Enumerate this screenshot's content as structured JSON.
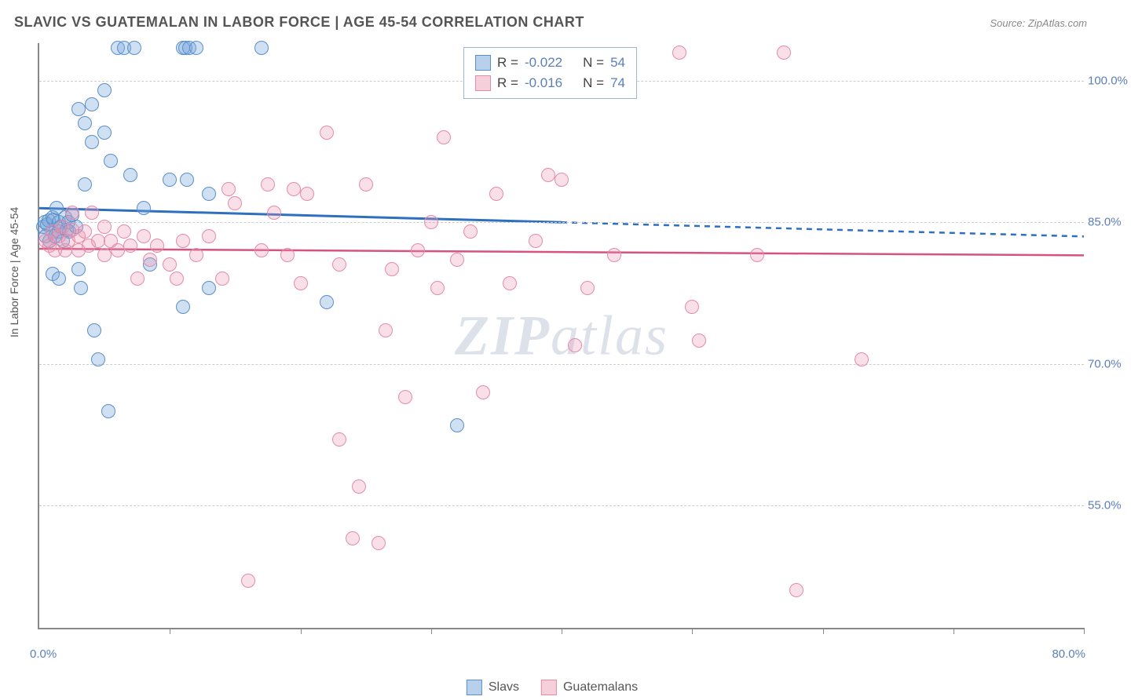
{
  "title": "SLAVIC VS GUATEMALAN IN LABOR FORCE | AGE 45-54 CORRELATION CHART",
  "source": "Source: ZipAtlas.com",
  "ylabel": "In Labor Force | Age 45-54",
  "watermark_bold": "ZIP",
  "watermark_rest": "atlas",
  "chart": {
    "type": "scatter",
    "xlim": [
      0,
      80
    ],
    "ylim": [
      42,
      104
    ],
    "yticks": [
      55.0,
      70.0,
      85.0,
      100.0
    ],
    "ytick_labels": [
      "55.0%",
      "70.0%",
      "85.0%",
      "100.0%"
    ],
    "xticks": [
      10,
      20,
      30,
      40,
      50,
      60,
      70,
      80
    ],
    "x_min_label": "0.0%",
    "x_max_label": "80.0%",
    "background_color": "#ffffff",
    "grid_color": "#cccccc",
    "axis_color": "#888888",
    "label_color": "#5b7fb8",
    "marker_radius": 9,
    "marker_stroke_width": 1.5,
    "series": [
      {
        "name": "Slavs",
        "fill": "rgba(120,165,220,0.35)",
        "stroke": "#5b8fc9",
        "swatch_fill": "#b8d0ea",
        "swatch_stroke": "#5b8fc9",
        "R": "-0.022",
        "N": "54",
        "trend": {
          "x1": 0,
          "y1": 86.5,
          "x2": 40,
          "y2": 85.0,
          "color": "#2e6fc0",
          "width": 3,
          "dash_x1": 40,
          "dash_y1": 85.0,
          "dash_x2": 80,
          "dash_y2": 83.5
        },
        "points": [
          [
            0.3,
            84.5
          ],
          [
            0.4,
            85.0
          ],
          [
            0.5,
            83.5
          ],
          [
            0.6,
            84.8
          ],
          [
            0.7,
            85.2
          ],
          [
            0.8,
            83.0
          ],
          [
            1.0,
            84.0
          ],
          [
            1.0,
            85.5
          ],
          [
            1.1,
            85.3
          ],
          [
            1.2,
            83.5
          ],
          [
            1.3,
            86.5
          ],
          [
            1.5,
            84.0
          ],
          [
            1.5,
            85.0
          ],
          [
            1.6,
            84.5
          ],
          [
            1.8,
            83.0
          ],
          [
            2.0,
            85.5
          ],
          [
            2.1,
            84.2
          ],
          [
            2.2,
            85.0
          ],
          [
            2.3,
            84.0
          ],
          [
            2.5,
            85.8
          ],
          [
            2.8,
            84.5
          ],
          [
            3.0,
            97.0
          ],
          [
            3.0,
            80.0
          ],
          [
            3.2,
            78.0
          ],
          [
            3.5,
            95.5
          ],
          [
            3.5,
            89.0
          ],
          [
            4.0,
            93.5
          ],
          [
            4.0,
            97.5
          ],
          [
            4.2,
            73.5
          ],
          [
            4.5,
            70.5
          ],
          [
            5.0,
            99.0
          ],
          [
            5.0,
            94.5
          ],
          [
            5.3,
            65.0
          ],
          [
            5.5,
            91.5
          ],
          [
            6.0,
            103.5
          ],
          [
            6.5,
            103.5
          ],
          [
            7.0,
            90.0
          ],
          [
            7.3,
            103.5
          ],
          [
            8.0,
            86.5
          ],
          [
            8.5,
            80.5
          ],
          [
            10.0,
            89.5
          ],
          [
            11.0,
            103.5
          ],
          [
            11.0,
            76.0
          ],
          [
            11.2,
            103.5
          ],
          [
            11.3,
            89.5
          ],
          [
            11.5,
            103.5
          ],
          [
            12.0,
            103.5
          ],
          [
            13.0,
            78.0
          ],
          [
            13.0,
            88.0
          ],
          [
            17.0,
            103.5
          ],
          [
            22.0,
            76.5
          ],
          [
            32.0,
            63.5
          ],
          [
            1.0,
            79.5
          ],
          [
            1.5,
            79.0
          ]
        ]
      },
      {
        "name": "Guatemalans",
        "fill": "rgba(235,150,175,0.30)",
        "stroke": "#e48ba8",
        "swatch_fill": "#f5d0db",
        "swatch_stroke": "#e48ba8",
        "R": "-0.016",
        "N": "74",
        "trend": {
          "x1": 0,
          "y1": 82.2,
          "x2": 80,
          "y2": 81.5,
          "color": "#d6537f",
          "width": 2.5
        },
        "points": [
          [
            0.5,
            83.0
          ],
          [
            0.8,
            82.5
          ],
          [
            1.0,
            84.0
          ],
          [
            1.2,
            82.0
          ],
          [
            1.5,
            83.5
          ],
          [
            1.8,
            84.5
          ],
          [
            2.0,
            82.0
          ],
          [
            2.2,
            83.0
          ],
          [
            2.5,
            84.2
          ],
          [
            2.5,
            86.0
          ],
          [
            3.0,
            83.5
          ],
          [
            3.0,
            82.0
          ],
          [
            3.5,
            84.0
          ],
          [
            3.8,
            82.5
          ],
          [
            4.0,
            86.0
          ],
          [
            4.5,
            83.0
          ],
          [
            5.0,
            84.5
          ],
          [
            5.0,
            81.5
          ],
          [
            5.5,
            83.0
          ],
          [
            6.0,
            82.0
          ],
          [
            6.5,
            84.0
          ],
          [
            7.0,
            82.5
          ],
          [
            7.5,
            79.0
          ],
          [
            8.0,
            83.5
          ],
          [
            8.5,
            81.0
          ],
          [
            9.0,
            82.5
          ],
          [
            10.0,
            80.5
          ],
          [
            10.5,
            79.0
          ],
          [
            11.0,
            83.0
          ],
          [
            12.0,
            81.5
          ],
          [
            13.0,
            83.5
          ],
          [
            14.0,
            79.0
          ],
          [
            14.5,
            88.5
          ],
          [
            15.0,
            87.0
          ],
          [
            16.0,
            47.0
          ],
          [
            17.0,
            82.0
          ],
          [
            17.5,
            89.0
          ],
          [
            18.0,
            86.0
          ],
          [
            19.0,
            81.5
          ],
          [
            20.0,
            78.5
          ],
          [
            20.5,
            88.0
          ],
          [
            22.0,
            94.5
          ],
          [
            23.0,
            80.5
          ],
          [
            23.0,
            62.0
          ],
          [
            24.0,
            51.5
          ],
          [
            24.5,
            57.0
          ],
          [
            25.0,
            89.0
          ],
          [
            26.0,
            51.0
          ],
          [
            26.5,
            73.5
          ],
          [
            27.0,
            80.0
          ],
          [
            28.0,
            66.5
          ],
          [
            29.0,
            82.0
          ],
          [
            30.0,
            85.0
          ],
          [
            30.5,
            78.0
          ],
          [
            31.0,
            94.0
          ],
          [
            32.0,
            81.0
          ],
          [
            33.0,
            84.0
          ],
          [
            34.0,
            67.0
          ],
          [
            35.0,
            88.0
          ],
          [
            36.0,
            78.5
          ],
          [
            38.0,
            83.0
          ],
          [
            39.0,
            90.0
          ],
          [
            40.0,
            89.5
          ],
          [
            41.0,
            72.0
          ],
          [
            42.0,
            78.0
          ],
          [
            44.0,
            81.5
          ],
          [
            49.0,
            103.0
          ],
          [
            50.0,
            76.0
          ],
          [
            50.5,
            72.5
          ],
          [
            55.0,
            81.5
          ],
          [
            57.0,
            103.0
          ],
          [
            58.0,
            46.0
          ],
          [
            63.0,
            70.5
          ],
          [
            19.5,
            88.5
          ]
        ]
      }
    ]
  },
  "stats_legend_label_R": "R =",
  "stats_legend_label_N": "N ="
}
